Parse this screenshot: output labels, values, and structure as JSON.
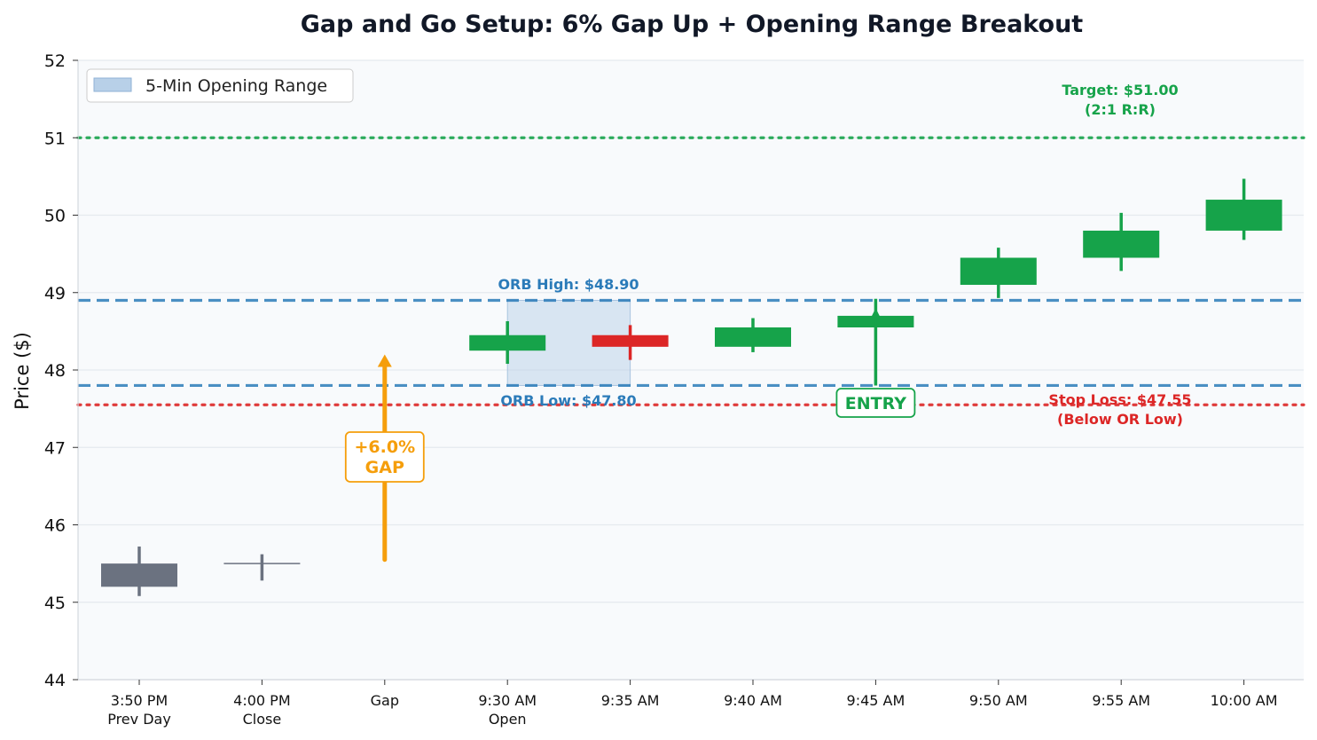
{
  "chart_data": {
    "type": "candlestick",
    "title": "Gap and Go Setup: 6% Gap Up + Opening Range Breakout",
    "ylabel": "Price ($)",
    "xlabel": "",
    "ylim": [
      44,
      52
    ],
    "yticks": [
      44,
      45,
      46,
      47,
      48,
      49,
      50,
      51,
      52
    ],
    "grid": "horizontal",
    "legend_position": "top-left",
    "categories": [
      {
        "line1": "3:50 PM",
        "line2": "Prev Day"
      },
      {
        "line1": "4:00 PM",
        "line2": "Close"
      },
      {
        "line1": "Gap",
        "line2": ""
      },
      {
        "line1": "9:30 AM",
        "line2": "Open"
      },
      {
        "line1": "9:35 AM",
        "line2": ""
      },
      {
        "line1": "9:40 AM",
        "line2": ""
      },
      {
        "line1": "9:45 AM",
        "line2": ""
      },
      {
        "line1": "9:50 AM",
        "line2": ""
      },
      {
        "line1": "9:55 AM",
        "line2": ""
      },
      {
        "line1": "10:00 AM",
        "line2": ""
      }
    ],
    "candles": [
      {
        "index": 0,
        "open": 45.2,
        "high": 45.72,
        "low": 45.08,
        "close": 45.5,
        "color": "#6b7280"
      },
      {
        "index": 1,
        "open": 45.5,
        "high": 45.62,
        "low": 45.28,
        "close": 45.5,
        "color": "#6b7280"
      },
      {
        "index": 3,
        "open": 48.25,
        "high": 48.63,
        "low": 48.08,
        "close": 48.45,
        "color": "#16a34a"
      },
      {
        "index": 4,
        "open": 48.45,
        "high": 48.58,
        "low": 48.13,
        "close": 48.3,
        "color": "#dc2626"
      },
      {
        "index": 5,
        "open": 48.3,
        "high": 48.67,
        "low": 48.23,
        "close": 48.55,
        "color": "#16a34a"
      },
      {
        "index": 6,
        "open": 48.55,
        "high": 48.92,
        "low": 47.8,
        "close": 48.7,
        "color": "#16a34a"
      },
      {
        "index": 7,
        "open": 49.1,
        "high": 49.58,
        "low": 48.93,
        "close": 49.45,
        "color": "#16a34a"
      },
      {
        "index": 8,
        "open": 49.45,
        "high": 50.03,
        "low": 49.28,
        "close": 49.8,
        "color": "#16a34a"
      },
      {
        "index": 9,
        "open": 49.8,
        "high": 50.47,
        "low": 49.68,
        "close": 50.2,
        "color": "#16a34a"
      }
    ],
    "levels": [
      {
        "name": "orb_high",
        "value": 48.9,
        "style": "dashed",
        "color": "#2b7bb9",
        "label": "ORB High: $48.90"
      },
      {
        "name": "orb_low",
        "value": 47.8,
        "style": "dashed",
        "color": "#2b7bb9",
        "label": "ORB Low: $47.80"
      },
      {
        "name": "target",
        "value": 51.0,
        "style": "dotted",
        "color": "#16a34a",
        "label": "Target: $51.00",
        "label2": "(2:1 R:R)"
      },
      {
        "name": "stop",
        "value": 47.55,
        "style": "dotted",
        "color": "#dc2626",
        "label": "Stop Loss: $47.55",
        "label2": "(Below OR Low)"
      }
    ],
    "opening_range": {
      "x_start": 3,
      "x_end": 4,
      "low": 47.8,
      "high": 48.9,
      "color": "#b8d0e8"
    },
    "legend": [
      {
        "label": "5-Min Opening Range"
      }
    ],
    "annotations": {
      "gap": {
        "x": 2,
        "from": 45.55,
        "to": 48.2,
        "label1": "+6.0%",
        "label2": "GAP",
        "color": "#f59e0b"
      },
      "entry": {
        "x": 6,
        "from": 47.8,
        "to": 48.8,
        "label": "ENTRY",
        "color": "#16a34a"
      }
    }
  }
}
